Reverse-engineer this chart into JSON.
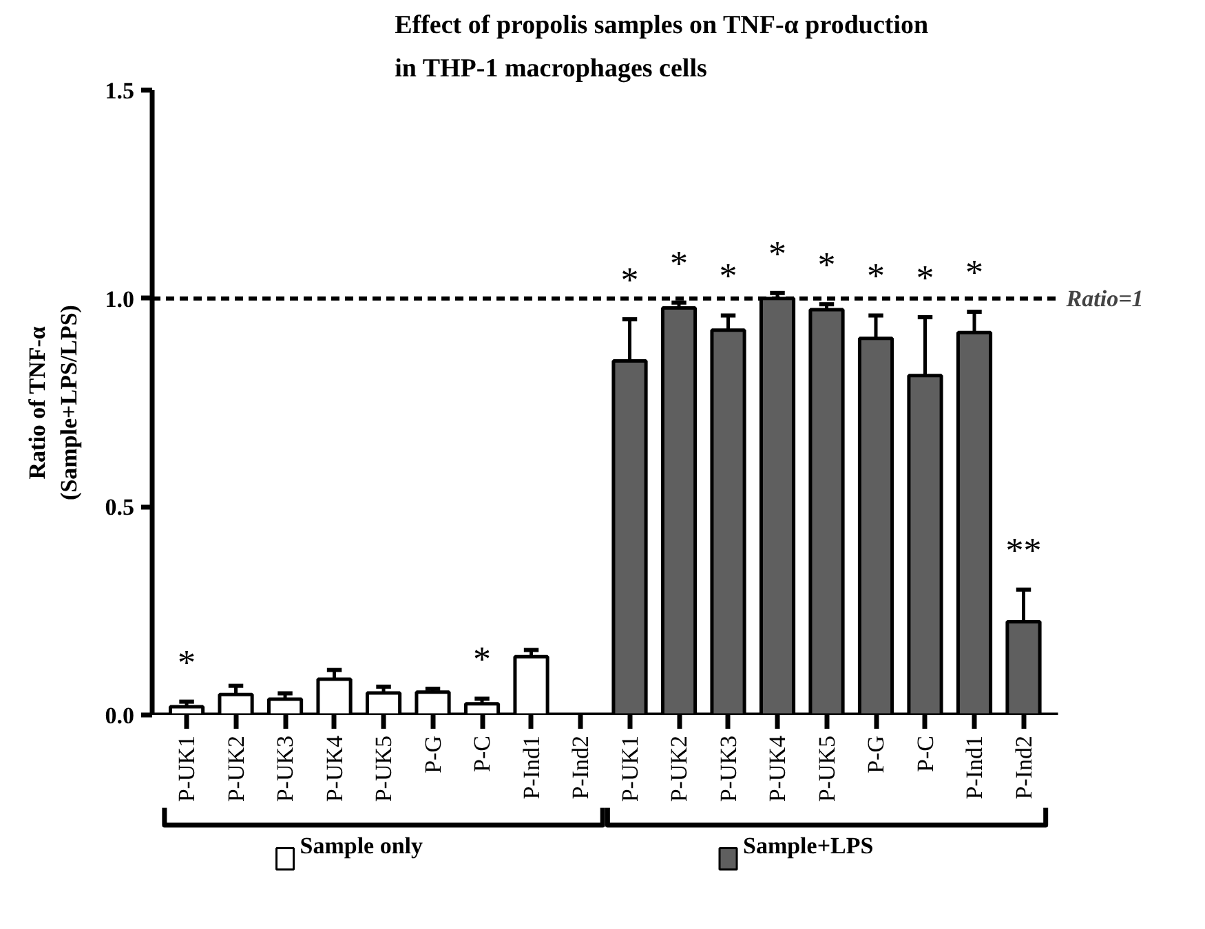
{
  "chart_data": {
    "type": "bar",
    "title": "Effect of propolis samples on TNF-α production\nin THP-1 macrophages cells",
    "ylabel": "Ratio of TNF-α\n(Sample+LPS/LPS)",
    "categories": [
      "P-UK1",
      "P-UK2",
      "P-UK3",
      "P-UK4",
      "P-UK5",
      "P-G",
      "P-C",
      "P-Ind1",
      "P-Ind2",
      "P-UK1",
      "P-UK2",
      "P-UK3",
      "P-UK4",
      "P-UK5",
      "P-G",
      "P-C",
      "P-Ind1",
      "P-Ind2"
    ],
    "series": [
      {
        "name": "Sample only",
        "color": "#ffffff",
        "values": [
          0.02,
          0.049,
          0.038,
          0.086,
          0.053,
          0.055,
          0.027,
          0.14,
          null,
          null,
          null,
          null,
          null,
          null,
          null,
          null,
          null,
          null
        ],
        "errors": [
          0.012,
          0.021,
          0.014,
          0.022,
          0.015,
          0.008,
          0.012,
          0.016,
          null,
          null,
          null,
          null,
          null,
          null,
          null,
          null,
          null,
          null
        ],
        "value_labels": [
          "*",
          null,
          null,
          null,
          null,
          null,
          "*",
          null,
          null,
          null,
          null,
          null,
          null,
          null,
          null,
          null,
          null,
          null
        ]
      },
      {
        "name": "Sample+LPS",
        "color": "#5f5f5f",
        "values": [
          null,
          null,
          null,
          null,
          null,
          null,
          null,
          null,
          null,
          0.85,
          0.977,
          0.924,
          1.0,
          0.973,
          0.904,
          0.815,
          0.918,
          0.224
        ],
        "errors": [
          null,
          null,
          null,
          null,
          null,
          null,
          null,
          null,
          null,
          0.1,
          0.013,
          0.035,
          0.013,
          0.013,
          0.055,
          0.14,
          0.05,
          0.077
        ],
        "value_labels": [
          null,
          null,
          null,
          null,
          null,
          null,
          null,
          null,
          null,
          "*",
          "*",
          "*",
          "*",
          "*",
          "*",
          "*",
          "*",
          "**"
        ]
      }
    ],
    "ylim": [
      0,
      1.5
    ],
    "yticks": [
      {
        "value": 0,
        "label": "0.0"
      },
      {
        "value": 0.5,
        "label": "0.5"
      },
      {
        "value": 1.0,
        "label": "1.0"
      },
      {
        "value": 1.5,
        "label": "1.5"
      }
    ],
    "ref_lines": [
      {
        "axis": "y",
        "value": 1,
        "label": "Ratio=1",
        "line_style": "dashed",
        "color": "#000000"
      }
    ],
    "grid": false,
    "legend": "bottom"
  }
}
